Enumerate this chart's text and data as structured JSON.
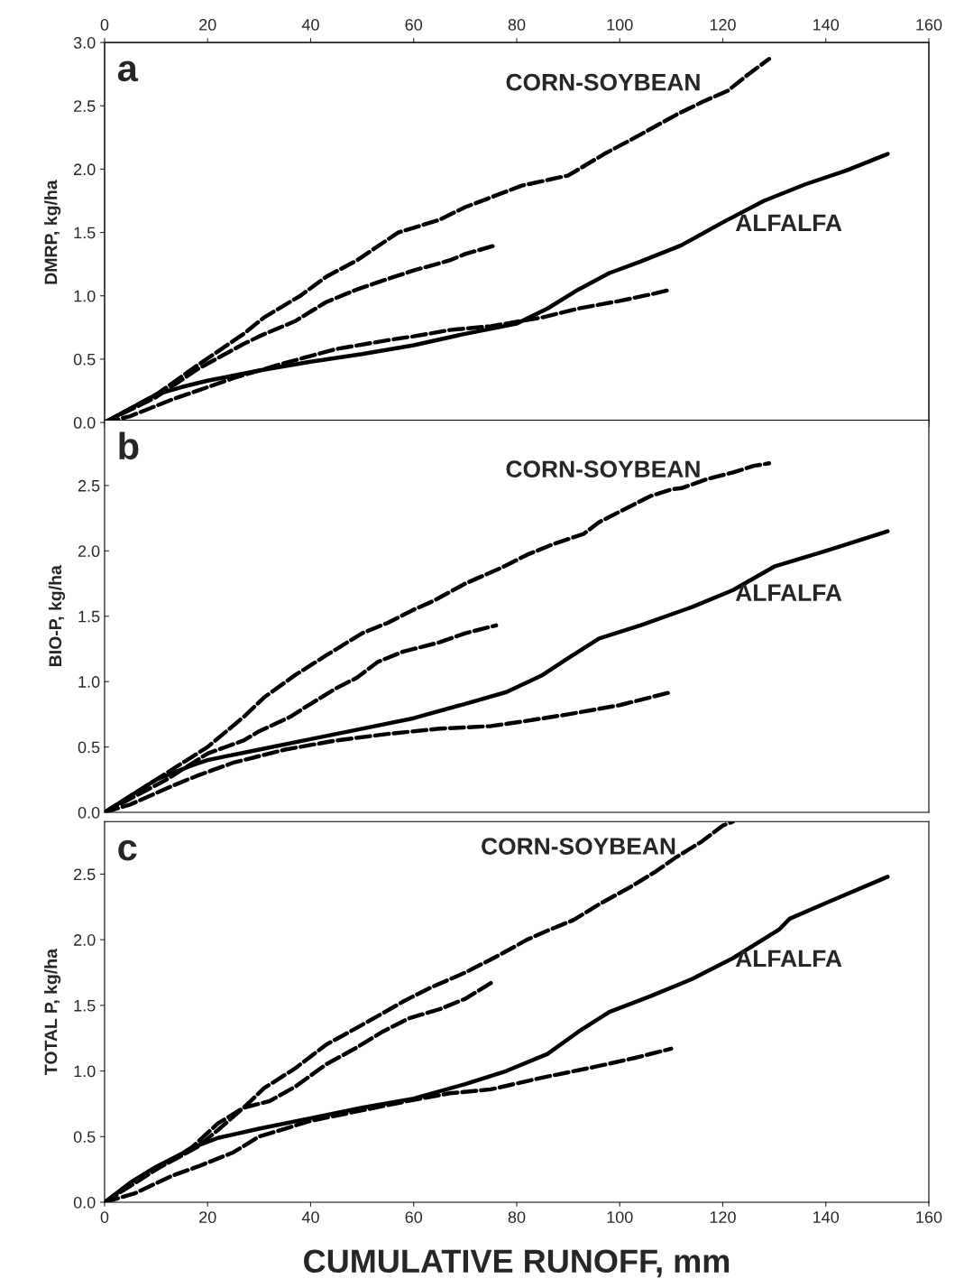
{
  "chart_data": [
    {
      "type": "line",
      "title": "a",
      "ylabel": "DMRP, kg/ha",
      "xlim": [
        0,
        160
      ],
      "x2lim": [
        0,
        160
      ],
      "x2ticks": [
        0,
        20,
        40,
        60,
        80,
        100,
        120,
        140,
        160
      ],
      "ylim": [
        0,
        3.0
      ],
      "yticks": [
        {
          "value": 0,
          "label": "0.0"
        },
        0.5,
        {
          "value": 1,
          "label": "1.0"
        },
        1.5,
        {
          "value": 2,
          "label": "2.0"
        },
        2.5,
        {
          "value": 3,
          "label": "3.0"
        }
      ],
      "tick_labels": "y",
      "annotations": [
        "CORN-SOYBEAN",
        "ALFALFA"
      ],
      "series": [
        {
          "color": "#000000",
          "line_style": "dashed",
          "x": [
            0,
            10,
            18,
            27,
            31,
            38,
            43,
            49,
            57,
            65,
            70,
            81,
            90,
            97,
            103,
            111,
            116,
            121,
            125,
            129
          ],
          "values": [
            0,
            0.22,
            0.45,
            0.7,
            0.83,
            1.0,
            1.15,
            1.28,
            1.5,
            1.6,
            1.7,
            1.87,
            1.95,
            2.12,
            2.25,
            2.43,
            2.53,
            2.62,
            2.75,
            2.87
          ]
        },
        {
          "color": "#000000",
          "line_style": "dashed",
          "x": [
            0,
            10,
            18,
            27,
            30,
            37,
            43,
            49,
            54,
            60,
            67,
            70,
            76
          ],
          "values": [
            0,
            0.2,
            0.42,
            0.62,
            0.68,
            0.8,
            0.95,
            1.05,
            1.12,
            1.2,
            1.28,
            1.33,
            1.4
          ]
        },
        {
          "color": "#000000",
          "line_style": "solid",
          "x": [
            0,
            10,
            15,
            20,
            30,
            40,
            50,
            60,
            70,
            80,
            86,
            92,
            98,
            104,
            112,
            120,
            128,
            136,
            144,
            152
          ],
          "values": [
            0,
            0.22,
            0.28,
            0.33,
            0.41,
            0.48,
            0.54,
            0.61,
            0.7,
            0.78,
            0.9,
            1.05,
            1.18,
            1.27,
            1.4,
            1.58,
            1.75,
            1.88,
            1.99,
            2.12
          ]
        },
        {
          "color": "#000000",
          "line_style": "dashed",
          "x": [
            0,
            5,
            13,
            18,
            25,
            35,
            45,
            55,
            60,
            67,
            75,
            85,
            92,
            100,
            107,
            110
          ],
          "values": [
            0,
            0.05,
            0.18,
            0.25,
            0.35,
            0.47,
            0.58,
            0.65,
            0.68,
            0.73,
            0.76,
            0.83,
            0.9,
            0.96,
            1.02,
            1.05
          ]
        }
      ]
    },
    {
      "type": "line",
      "title": "b",
      "ylabel": "BIO-P, kg/ha",
      "xlim": [
        0,
        160
      ],
      "ylim": [
        0,
        3.0
      ],
      "yticks": [
        {
          "value": 0,
          "label": "0.0"
        },
        0.5,
        {
          "value": 1,
          "label": "1.0"
        },
        1.5,
        {
          "value": 2,
          "label": "2.0"
        },
        2.5
      ],
      "tick_labels": "y",
      "annotations": [
        "CORN-SOYBEAN",
        "ALFALFA"
      ],
      "series": [
        {
          "color": "#000000",
          "line_style": "dashed",
          "x": [
            0,
            10,
            20,
            27,
            31,
            37,
            43,
            50,
            55,
            60,
            64,
            70,
            77,
            82,
            87,
            93,
            96,
            101,
            106,
            110,
            112,
            117,
            122,
            126,
            129
          ],
          "values": [
            0,
            0.25,
            0.5,
            0.73,
            0.88,
            1.05,
            1.2,
            1.37,
            1.45,
            1.55,
            1.62,
            1.75,
            1.87,
            1.97,
            2.05,
            2.13,
            2.22,
            2.32,
            2.42,
            2.47,
            2.48,
            2.55,
            2.6,
            2.65,
            2.67
          ]
        },
        {
          "color": "#000000",
          "line_style": "dashed",
          "x": [
            0,
            12,
            20,
            27,
            30,
            36,
            40,
            45,
            49,
            53,
            58,
            65,
            70,
            76
          ],
          "values": [
            0,
            0.25,
            0.45,
            0.55,
            0.62,
            0.73,
            0.83,
            0.95,
            1.03,
            1.15,
            1.23,
            1.3,
            1.37,
            1.43
          ]
        },
        {
          "color": "#000000",
          "line_style": "solid",
          "x": [
            0,
            10,
            17,
            20,
            30,
            40,
            50,
            60,
            70,
            78,
            85,
            90,
            96,
            104,
            114,
            122,
            130,
            140,
            152
          ],
          "values": [
            0,
            0.25,
            0.36,
            0.4,
            0.48,
            0.56,
            0.64,
            0.72,
            0.83,
            0.92,
            1.05,
            1.18,
            1.33,
            1.43,
            1.57,
            1.7,
            1.88,
            2.0,
            2.15
          ]
        },
        {
          "color": "#000000",
          "line_style": "dashed",
          "x": [
            0,
            5,
            13,
            18,
            25,
            35,
            45,
            55,
            65,
            75,
            82,
            90,
            100,
            106,
            110
          ],
          "values": [
            0,
            0.06,
            0.2,
            0.28,
            0.38,
            0.48,
            0.55,
            0.6,
            0.64,
            0.66,
            0.7,
            0.75,
            0.82,
            0.88,
            0.92
          ]
        }
      ]
    },
    {
      "type": "line",
      "title": "c",
      "ylabel": "TOTAL P, kg/ha",
      "xlabel": "CUMULATIVE RUNOFF, mm",
      "xlim": [
        0,
        160
      ],
      "xticks": [
        0,
        20,
        40,
        60,
        80,
        100,
        120,
        140,
        160
      ],
      "ylim": [
        0,
        2.9
      ],
      "yticks": [
        {
          "value": 0,
          "label": "0.0"
        },
        0.5,
        {
          "value": 1,
          "label": "1.0"
        },
        1.5,
        {
          "value": 2,
          "label": "2.0"
        },
        2.5
      ],
      "annotations": [
        "CORN-SOYBEAN",
        "ALFALFA"
      ],
      "series": [
        {
          "color": "#000000",
          "line_style": "dashed",
          "x": [
            0,
            10,
            18,
            22,
            27,
            31,
            37,
            43,
            49,
            54,
            58,
            63,
            70,
            76,
            82,
            86,
            91,
            96,
            102,
            107,
            111,
            116,
            120,
            122
          ],
          "values": [
            0,
            0.25,
            0.42,
            0.55,
            0.72,
            0.87,
            1.02,
            1.2,
            1.33,
            1.44,
            1.53,
            1.63,
            1.75,
            1.87,
            2.0,
            2.07,
            2.15,
            2.27,
            2.4,
            2.52,
            2.63,
            2.75,
            2.87,
            2.9
          ]
        },
        {
          "color": "#000000",
          "line_style": "dashed",
          "x": [
            0,
            10,
            17,
            22,
            27,
            32,
            37,
            43,
            49,
            54,
            59,
            65,
            70,
            75
          ],
          "values": [
            0,
            0.25,
            0.42,
            0.6,
            0.72,
            0.77,
            0.88,
            1.05,
            1.18,
            1.3,
            1.4,
            1.47,
            1.55,
            1.67
          ]
        },
        {
          "color": "#000000",
          "line_style": "solid",
          "x": [
            0,
            5,
            10,
            18,
            22,
            30,
            40,
            50,
            60,
            70,
            78,
            86,
            92,
            98,
            106,
            114,
            122,
            131,
            133,
            140,
            152
          ],
          "values": [
            0,
            0.15,
            0.27,
            0.43,
            0.49,
            0.56,
            0.64,
            0.72,
            0.79,
            0.9,
            1.0,
            1.13,
            1.3,
            1.45,
            1.57,
            1.7,
            1.86,
            2.08,
            2.16,
            2.28,
            2.48
          ]
        },
        {
          "color": "#000000",
          "line_style": "dashed",
          "x": [
            0,
            6,
            13,
            18,
            25,
            30,
            40,
            50,
            60,
            67,
            75,
            85,
            95,
            103,
            110
          ],
          "values": [
            0,
            0.07,
            0.2,
            0.27,
            0.38,
            0.5,
            0.62,
            0.7,
            0.78,
            0.83,
            0.86,
            0.95,
            1.03,
            1.1,
            1.17
          ]
        }
      ]
    }
  ]
}
